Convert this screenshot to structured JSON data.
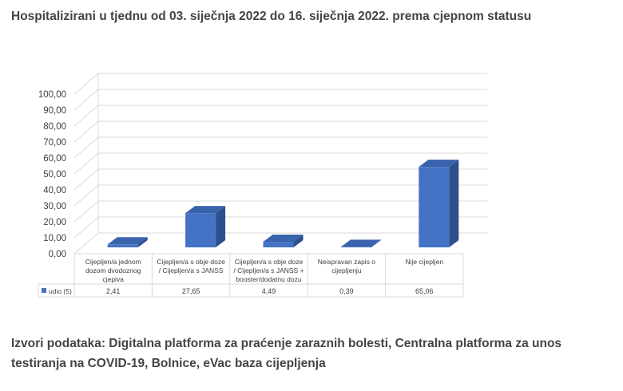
{
  "title": "Hospitalizirani u tjednu od 03. siječnja 2022 do 16. siječnja 2022. prema cjepnom statusu",
  "source": "Izvori podataka: Digitalna platforma za praćenje zaraznih bolesti, Centralna platforma za unos testiranja na COVID-19, Bolnice, eVac baza cijepljenja",
  "chart_data": {
    "type": "bar",
    "categories": [
      [
        "Cijepljen/a jednom",
        "dozom dvodoznog",
        "cjepiva"
      ],
      [
        "Cijepljen/a s obje doze",
        "/ Cijepljen/a s JANSS"
      ],
      [
        "Cijepljen/a s obje doze",
        "/ Cijepljen/a s JANSS +",
        "booster/dodatnu dozu"
      ],
      [
        "Neispravan zapis o",
        "cijepljenju"
      ],
      [
        "Nije cijepljen"
      ]
    ],
    "series": [
      {
        "name": "udio (%)",
        "values": [
          2.41,
          27.65,
          4.49,
          0.39,
          65.06
        ],
        "labels": [
          "2,41",
          "27,65",
          "4,49",
          "0,39",
          "65,06"
        ]
      }
    ],
    "yticks": [
      "0,00",
      "10,00",
      "20,00",
      "30,00",
      "40,00",
      "50,00",
      "60,00",
      "70,00",
      "80,00",
      "90,00",
      "100,00"
    ],
    "ylim": [
      0,
      100
    ],
    "grid": true,
    "legend_placement": "data-table",
    "colors": {
      "front": "#4472c4",
      "side": "#2d4f8c",
      "top": "#3a63ae",
      "grid": "#d9d9d9"
    }
  }
}
